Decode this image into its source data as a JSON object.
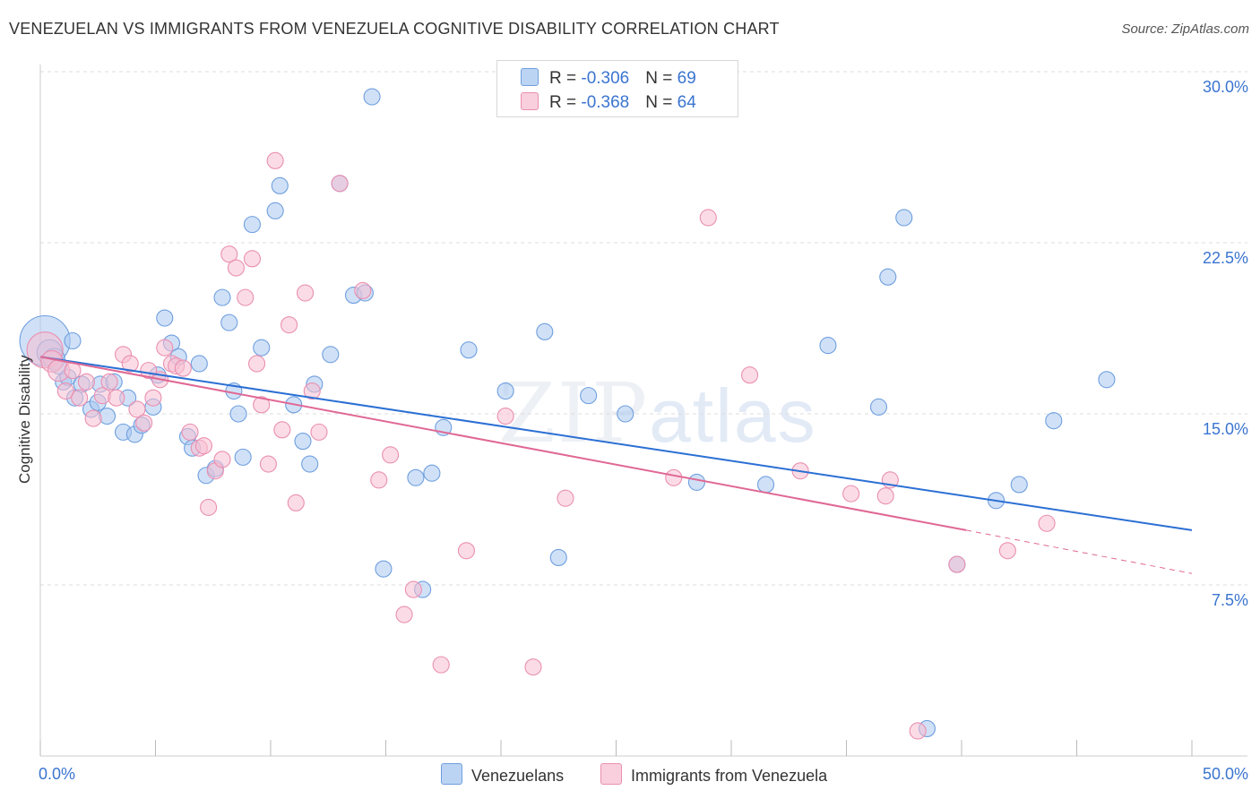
{
  "title": "VENEZUELAN VS IMMIGRANTS FROM VENEZUELA COGNITIVE DISABILITY CORRELATION CHART",
  "source": "Source: ZipAtlas.com",
  "watermark": {
    "part1": "ZIP",
    "part2": "atlas"
  },
  "legend_top": {
    "rows": [
      {
        "r_label": "R = ",
        "r_value": "-0.306",
        "n_label": "N = ",
        "n_value": "69"
      },
      {
        "r_label": "R = ",
        "r_value": "-0.368",
        "n_label": "N = ",
        "n_value": "64"
      }
    ]
  },
  "legend_bottom": {
    "series1": "Venezuelans",
    "series2": "Immigrants from Venezuela"
  },
  "colors": {
    "blue_fill": "#aac8f0",
    "blue_stroke": "#6f9fdf",
    "blue_line": "#2b6fd4",
    "pink_fill": "#f8c0d2",
    "pink_stroke": "#ea8fb0",
    "pink_line": "#e06894",
    "tick_label": "#3a74d0",
    "grid": "#dddddd"
  },
  "chart_data": {
    "type": "scatter",
    "title": "VENEZUELAN VS IMMIGRANTS FROM VENEZUELA COGNITIVE DISABILITY CORRELATION CHART",
    "xlabel": "",
    "ylabel": "Cognitive Disability",
    "xlim": [
      0,
      50
    ],
    "ylim": [
      0,
      30.75
    ],
    "x_tick_labels": [
      "0.0%",
      "50.0%"
    ],
    "y_ticks": [
      7.5,
      15.0,
      22.5,
      30.0
    ],
    "y_tick_labels": [
      "7.5%",
      "15.0%",
      "22.5%",
      "30.0%"
    ],
    "grid": "horizontal dashed",
    "legend_placement": "bottom",
    "series": [
      {
        "name": "Venezuelans",
        "R": -0.306,
        "N": 69,
        "trend": {
          "x": [
            0,
            50
          ],
          "y": [
            17.5,
            9.9
          ]
        },
        "points": [
          [
            0.2,
            18.2,
            28
          ],
          [
            0.4,
            17.7,
            14
          ],
          [
            0.6,
            17.4,
            12
          ],
          [
            0.8,
            17.1,
            9
          ],
          [
            1.0,
            16.4,
            9
          ],
          [
            1.4,
            18.2,
            9
          ],
          [
            1.2,
            16.6,
            9
          ],
          [
            1.5,
            15.7,
            9
          ],
          [
            1.8,
            16.3,
            9
          ],
          [
            2.2,
            15.2,
            9
          ],
          [
            2.5,
            15.5,
            9
          ],
          [
            2.6,
            16.3,
            9
          ],
          [
            2.9,
            14.9,
            9
          ],
          [
            3.2,
            16.4,
            9
          ],
          [
            3.6,
            14.2,
            9
          ],
          [
            3.8,
            15.7,
            9
          ],
          [
            4.1,
            14.1,
            9
          ],
          [
            4.4,
            14.5,
            9
          ],
          [
            4.9,
            15.3,
            9
          ],
          [
            5.1,
            16.7,
            9
          ],
          [
            5.4,
            19.2,
            9
          ],
          [
            5.7,
            18.1,
            9
          ],
          [
            6.0,
            17.5,
            9
          ],
          [
            6.4,
            14.0,
            9
          ],
          [
            6.6,
            13.5,
            9
          ],
          [
            6.9,
            17.2,
            9
          ],
          [
            7.2,
            12.3,
            9
          ],
          [
            7.6,
            12.6,
            9
          ],
          [
            7.9,
            20.1,
            9
          ],
          [
            8.2,
            19.0,
            9
          ],
          [
            8.4,
            16.0,
            9
          ],
          [
            8.6,
            15.0,
            9
          ],
          [
            8.8,
            13.1,
            9
          ],
          [
            9.2,
            23.3,
            9
          ],
          [
            9.6,
            17.9,
            9
          ],
          [
            10.2,
            23.9,
            9
          ],
          [
            10.4,
            25.0,
            9
          ],
          [
            11.0,
            15.4,
            9
          ],
          [
            11.4,
            13.8,
            9
          ],
          [
            11.7,
            12.8,
            9
          ],
          [
            11.9,
            16.3,
            9
          ],
          [
            12.6,
            17.6,
            9
          ],
          [
            13.0,
            25.1,
            9
          ],
          [
            13.6,
            20.2,
            9
          ],
          [
            14.1,
            20.3,
            9
          ],
          [
            14.4,
            28.9,
            9
          ],
          [
            14.9,
            8.2,
            9
          ],
          [
            16.3,
            12.2,
            9
          ],
          [
            16.6,
            7.3,
            9
          ],
          [
            17.0,
            12.4,
            9
          ],
          [
            17.5,
            14.4,
            9
          ],
          [
            18.6,
            17.8,
            9
          ],
          [
            20.2,
            16.0,
            9
          ],
          [
            21.9,
            18.6,
            9
          ],
          [
            22.5,
            8.7,
            9
          ],
          [
            23.8,
            15.8,
            9
          ],
          [
            25.4,
            15.0,
            9
          ],
          [
            28.5,
            12.0,
            9
          ],
          [
            31.5,
            11.9,
            9
          ],
          [
            34.2,
            18.0,
            9
          ],
          [
            36.4,
            15.3,
            9
          ],
          [
            36.8,
            21.0,
            9
          ],
          [
            37.5,
            23.6,
            9
          ],
          [
            38.5,
            1.2,
            9
          ],
          [
            39.8,
            8.4,
            9
          ],
          [
            41.5,
            11.2,
            9
          ],
          [
            42.5,
            11.9,
            9
          ],
          [
            44.0,
            14.7,
            9
          ],
          [
            46.3,
            16.5,
            9
          ]
        ]
      },
      {
        "name": "Immigrants from Venezuela",
        "R": -0.368,
        "N": 64,
        "trend": {
          "x": [
            0,
            40.2
          ],
          "y": [
            17.5,
            9.9
          ]
        },
        "trend_dashed": {
          "x": [
            40.2,
            50
          ],
          "y": [
            9.9,
            8.0
          ]
        },
        "points": [
          [
            0.2,
            17.8,
            20
          ],
          [
            0.5,
            17.3,
            12
          ],
          [
            0.8,
            16.9,
            12
          ],
          [
            1.1,
            16.0,
            9
          ],
          [
            1.4,
            16.9,
            9
          ],
          [
            1.7,
            15.7,
            9
          ],
          [
            2.0,
            16.4,
            9
          ],
          [
            2.3,
            14.8,
            9
          ],
          [
            2.7,
            15.8,
            9
          ],
          [
            3.0,
            16.4,
            9
          ],
          [
            3.3,
            15.7,
            9
          ],
          [
            3.6,
            17.6,
            9
          ],
          [
            3.9,
            17.2,
            9
          ],
          [
            4.2,
            15.2,
            9
          ],
          [
            4.5,
            14.6,
            9
          ],
          [
            4.7,
            16.9,
            9
          ],
          [
            4.9,
            15.7,
            9
          ],
          [
            5.2,
            16.5,
            9
          ],
          [
            5.4,
            17.9,
            9
          ],
          [
            5.7,
            17.2,
            9
          ],
          [
            5.9,
            17.1,
            9
          ],
          [
            6.2,
            17.0,
            9
          ],
          [
            6.5,
            14.2,
            9
          ],
          [
            6.9,
            13.5,
            9
          ],
          [
            7.1,
            13.6,
            9
          ],
          [
            7.3,
            10.9,
            9
          ],
          [
            7.6,
            12.5,
            9
          ],
          [
            7.9,
            13.0,
            9
          ],
          [
            8.2,
            22.0,
            9
          ],
          [
            8.5,
            21.4,
            9
          ],
          [
            8.9,
            20.1,
            9
          ],
          [
            9.2,
            21.8,
            9
          ],
          [
            9.4,
            17.2,
            9
          ],
          [
            9.6,
            15.4,
            9
          ],
          [
            9.9,
            12.8,
            9
          ],
          [
            10.2,
            26.1,
            9
          ],
          [
            10.5,
            14.3,
            9
          ],
          [
            10.8,
            18.9,
            9
          ],
          [
            11.1,
            11.1,
            9
          ],
          [
            11.5,
            20.3,
            9
          ],
          [
            11.8,
            16.0,
            9
          ],
          [
            12.1,
            14.2,
            9
          ],
          [
            13.0,
            25.1,
            9
          ],
          [
            14.0,
            20.4,
            9
          ],
          [
            14.7,
            12.1,
            9
          ],
          [
            15.2,
            13.2,
            9
          ],
          [
            15.8,
            6.2,
            9
          ],
          [
            16.2,
            7.3,
            9
          ],
          [
            17.4,
            4.0,
            9
          ],
          [
            18.5,
            9.0,
            9
          ],
          [
            20.2,
            14.9,
            9
          ],
          [
            21.4,
            3.9,
            9
          ],
          [
            22.8,
            11.3,
            9
          ],
          [
            27.5,
            12.2,
            9
          ],
          [
            29.0,
            23.6,
            9
          ],
          [
            30.8,
            16.7,
            9
          ],
          [
            33.0,
            12.5,
            9
          ],
          [
            35.2,
            11.5,
            9
          ],
          [
            36.7,
            11.4,
            9
          ],
          [
            36.9,
            12.1,
            9
          ],
          [
            38.1,
            1.1,
            9
          ],
          [
            39.8,
            8.4,
            9
          ],
          [
            42.0,
            9.0,
            9
          ],
          [
            43.7,
            10.2,
            9
          ]
        ]
      }
    ]
  }
}
